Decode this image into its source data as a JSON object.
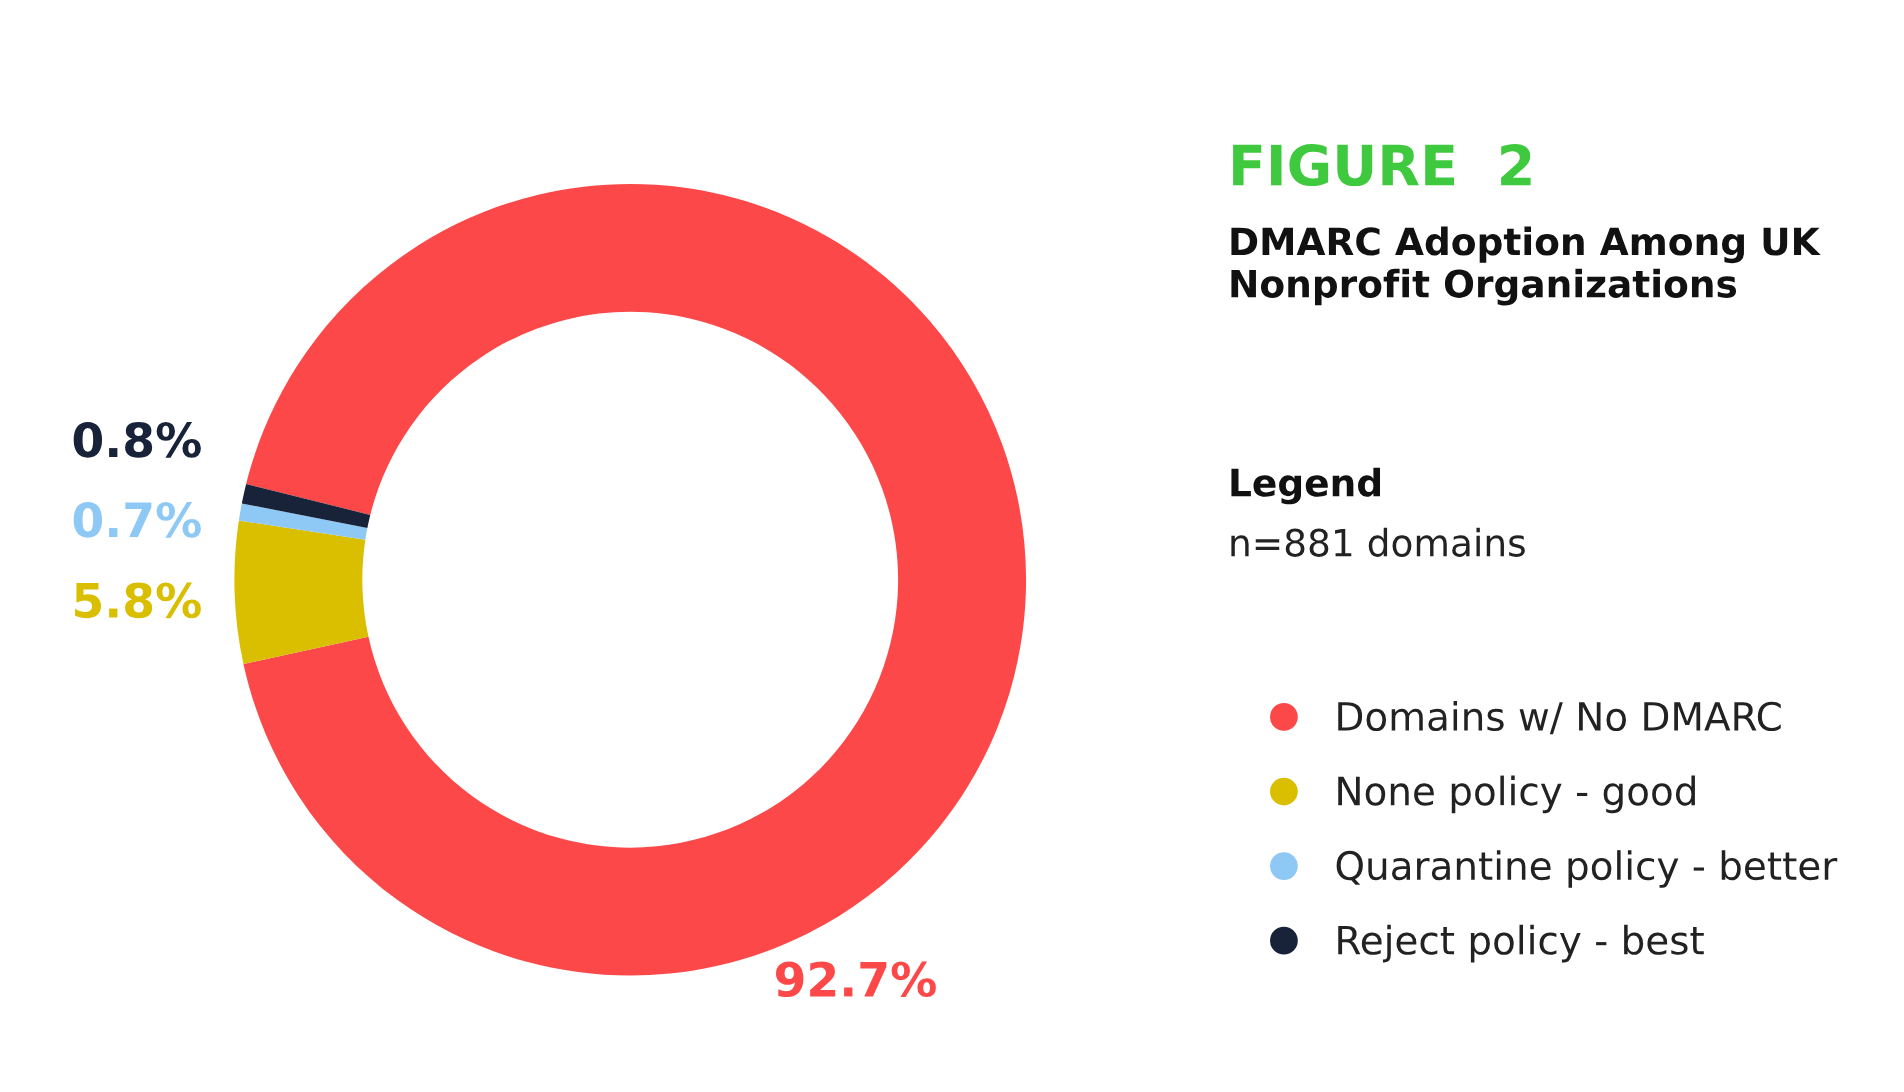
{
  "chart_data": {
    "type": "donut",
    "title": "FIGURE  2",
    "subtitle": "DMARC Adoption Among UK Nonprofit Organizations",
    "legend_title": "Legend",
    "annotations": [
      "n=881 domains"
    ],
    "categories": [
      "Domains w/ No DMARC",
      "None policy - good",
      "Quarantine policy - better",
      "Reject policy - best"
    ],
    "values": [
      92.7,
      5.8,
      0.7,
      0.8
    ],
    "colors": [
      "#fc4848",
      "#dabe00",
      "#8ec8f4",
      "#18233a"
    ],
    "value_labels": [
      "92.7%",
      "5.8%",
      "0.7%",
      "0.8%"
    ],
    "legend": "right"
  }
}
